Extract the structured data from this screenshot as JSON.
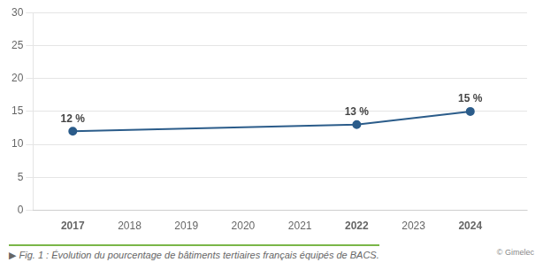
{
  "chart_data": {
    "type": "line",
    "x": [
      2017,
      2022,
      2024
    ],
    "values": [
      12,
      13,
      15
    ],
    "value_labels": [
      "12 %",
      "13 %",
      "15 %"
    ],
    "data_labels": true,
    "color": "#2b5c8a",
    "xlim": [
      2016.3,
      2025.0
    ],
    "xticks": [
      2017,
      2018,
      2019,
      2020,
      2021,
      2022,
      2023,
      2024
    ],
    "ylim": [
      0,
      30
    ],
    "yticks": [
      0,
      5,
      10,
      15,
      20,
      25,
      30
    ],
    "grid": true,
    "annotations": [
      "▶ Fig. 1 : Évolution du pourcentage de bâtiments tertiaires français équipés de BACS.",
      "© Gimelec"
    ]
  }
}
